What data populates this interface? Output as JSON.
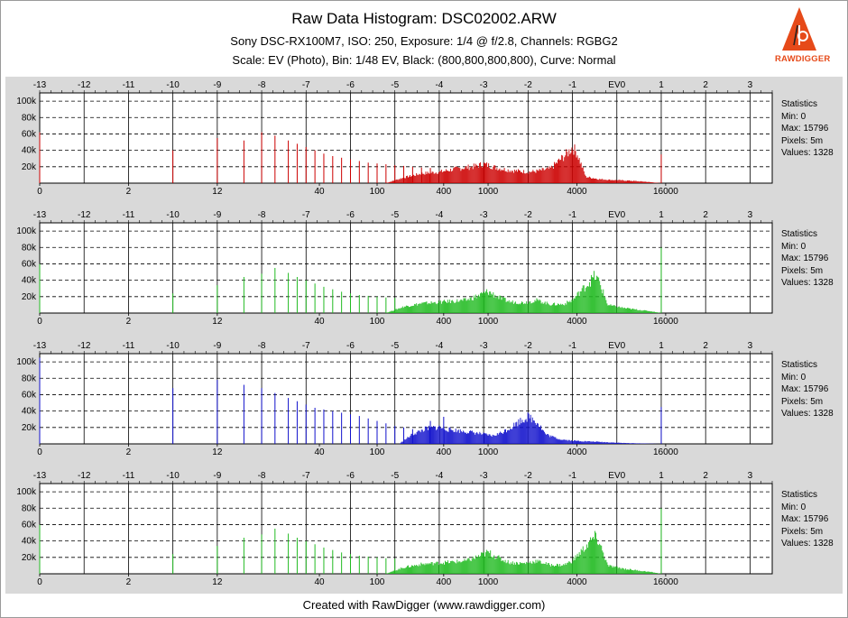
{
  "header": {
    "title": "Raw Data Histogram: DSC02002.ARW",
    "camera_line": "Sony DSC-RX100M7, ISO: 250, Exposure: 1/4 @ f/2.8, Channels: RGBG2",
    "scale_line": "Scale: EV (Photo), Bin: 1/48 EV, Black: (800,800,800,800), Curve: Normal"
  },
  "logo": {
    "text": "RAWDIGGER",
    "accent": "#e64a19"
  },
  "footer": {
    "text": "Created with RawDigger (www.rawdigger.com)"
  },
  "colors": {
    "frame": "#d9d9d9",
    "plot_bg": "#ffffff",
    "grid": "#000000"
  },
  "chart_data": {
    "type": "bar",
    "x_scale": "EV",
    "ev_ticks": [
      "-13",
      "-12",
      "-11",
      "-10",
      "-9",
      "-8",
      "-7",
      "-6",
      "-5",
      "-4",
      "-3",
      "-2",
      "-1",
      "EV0",
      "1",
      "2",
      "3"
    ],
    "raw_ticks": [
      {
        "ev": -13.0,
        "label": "0"
      },
      {
        "ev": -11.0,
        "label": "2"
      },
      {
        "ev": -9.0,
        "label": "12"
      },
      {
        "ev": -6.7,
        "label": "40"
      },
      {
        "ev": -5.4,
        "label": "100"
      },
      {
        "ev": -3.9,
        "label": "400"
      },
      {
        "ev": -2.9,
        "label": "1000"
      },
      {
        "ev": -0.9,
        "label": "4000"
      },
      {
        "ev": 1.1,
        "label": "16000"
      }
    ],
    "x_minor_ticks_per_ev": 4,
    "y_ticks": [
      "20k",
      "40k",
      "60k",
      "80k",
      "100k"
    ],
    "ylim": [
      0,
      110000
    ],
    "stats_title": "Statistics",
    "series": [
      {
        "channel": "R",
        "color": "#cc0000",
        "stats": [
          "Min: 0",
          "Max: 15796",
          "Pixels: 5m",
          "Values: 1328"
        ],
        "spikes": [
          [
            -13,
            62000
          ],
          [
            -10,
            40000
          ],
          [
            -9,
            55000
          ],
          [
            -8.4,
            52000
          ],
          [
            -8,
            62000
          ],
          [
            -7.7,
            58000
          ],
          [
            -7.4,
            52000
          ],
          [
            -7.2,
            48000
          ],
          [
            -7,
            44000
          ],
          [
            -6.8,
            40000
          ],
          [
            -6.6,
            36000
          ],
          [
            -6.4,
            33000
          ],
          [
            -6.2,
            31000
          ],
          [
            -6,
            29000
          ],
          [
            -5.8,
            27000
          ],
          [
            -5.6,
            25000
          ],
          [
            -5.4,
            24000
          ],
          [
            -5.2,
            23000
          ],
          [
            -5,
            22000
          ],
          [
            -4.8,
            21000
          ],
          [
            -4.6,
            20000
          ],
          [
            -4.4,
            19000
          ],
          [
            -4.2,
            18500
          ],
          [
            1.0,
            35000
          ]
        ],
        "envelope": [
          [
            -5.2,
            0
          ],
          [
            -4.8,
            7000
          ],
          [
            -4.4,
            12000
          ],
          [
            -4.0,
            14000
          ],
          [
            -3.6,
            18000
          ],
          [
            -3.2,
            21000
          ],
          [
            -3.0,
            24000
          ],
          [
            -2.7,
            19000
          ],
          [
            -2.4,
            16000
          ],
          [
            -2.0,
            14000
          ],
          [
            -1.8,
            15000
          ],
          [
            -1.5,
            18000
          ],
          [
            -1.3,
            28000
          ],
          [
            -1.1,
            38000
          ],
          [
            -1.0,
            45000
          ],
          [
            -0.9,
            38000
          ],
          [
            -0.7,
            8000
          ],
          [
            -0.4,
            5000
          ],
          [
            -0.1,
            4000
          ],
          [
            0.3,
            3000
          ],
          [
            0.6,
            2000
          ],
          [
            0.9,
            500
          ],
          [
            1.0,
            0
          ]
        ]
      },
      {
        "channel": "G",
        "color": "#22bb22",
        "stats": [
          "Min: 0",
          "Max: 15796",
          "Pixels: 5m",
          "Values: 1328"
        ],
        "spikes": [
          [
            -13,
            60000
          ],
          [
            -10,
            24000
          ],
          [
            -9,
            34000
          ],
          [
            -8.4,
            44000
          ],
          [
            -8,
            48000
          ],
          [
            -7.7,
            55000
          ],
          [
            -7.4,
            49000
          ],
          [
            -7.2,
            44000
          ],
          [
            -7,
            40000
          ],
          [
            -6.8,
            36000
          ],
          [
            -6.6,
            32000
          ],
          [
            -6.4,
            29000
          ],
          [
            -6.2,
            26000
          ],
          [
            -6,
            24000
          ],
          [
            -5.8,
            22000
          ],
          [
            -5.6,
            21000
          ],
          [
            -5.4,
            20000
          ],
          [
            -5.2,
            19000
          ],
          [
            -5,
            18500
          ],
          [
            1.0,
            80000
          ]
        ],
        "envelope": [
          [
            -5.2,
            0
          ],
          [
            -4.8,
            8000
          ],
          [
            -4.4,
            12000
          ],
          [
            -3.9,
            14000
          ],
          [
            -3.4,
            16000
          ],
          [
            -3.1,
            22000
          ],
          [
            -2.9,
            27000
          ],
          [
            -2.6,
            18000
          ],
          [
            -2.4,
            14000
          ],
          [
            -2.1,
            13000
          ],
          [
            -1.8,
            16000
          ],
          [
            -1.5,
            11000
          ],
          [
            -1.2,
            11000
          ],
          [
            -1.0,
            16000
          ],
          [
            -0.8,
            28000
          ],
          [
            -0.6,
            40000
          ],
          [
            -0.5,
            46000
          ],
          [
            -0.4,
            40000
          ],
          [
            -0.2,
            10000
          ],
          [
            0.2,
            6000
          ],
          [
            0.5,
            4000
          ],
          [
            0.8,
            2000
          ],
          [
            1.0,
            0
          ]
        ]
      },
      {
        "channel": "B",
        "color": "#1111cc",
        "stats": [
          "Min: 0",
          "Max: 15796",
          "Pixels: 5m",
          "Values: 1328"
        ],
        "spikes": [
          [
            -13,
            105000
          ],
          [
            -10,
            68000
          ],
          [
            -9,
            78000
          ],
          [
            -8.4,
            72000
          ],
          [
            -8,
            68000
          ],
          [
            -7.7,
            62000
          ],
          [
            -7.4,
            56000
          ],
          [
            -7.2,
            52000
          ],
          [
            -7,
            48000
          ],
          [
            -6.8,
            44000
          ],
          [
            -6.6,
            42000
          ],
          [
            -6.4,
            40000
          ],
          [
            -6.2,
            38000
          ],
          [
            -6,
            36000
          ],
          [
            -5.8,
            34000
          ],
          [
            -5.6,
            31000
          ],
          [
            -5.4,
            28000
          ],
          [
            -5.2,
            25000
          ],
          [
            -5,
            22000
          ],
          [
            -4.8,
            20000
          ],
          [
            -4.6,
            18000
          ],
          [
            -4.2,
            28000
          ],
          [
            -3.9,
            33000
          ],
          [
            1.0,
            45000
          ]
        ],
        "envelope": [
          [
            -4.9,
            0
          ],
          [
            -4.6,
            12000
          ],
          [
            -4.3,
            19000
          ],
          [
            -4.0,
            21000
          ],
          [
            -3.8,
            18000
          ],
          [
            -3.5,
            16000
          ],
          [
            -3.2,
            14000
          ],
          [
            -3.0,
            12000
          ],
          [
            -2.8,
            10000
          ],
          [
            -2.6,
            14000
          ],
          [
            -2.4,
            20000
          ],
          [
            -2.2,
            28000
          ],
          [
            -2.0,
            34000
          ],
          [
            -1.8,
            28000
          ],
          [
            -1.6,
            12000
          ],
          [
            -1.3,
            6000
          ],
          [
            -1.0,
            4000
          ],
          [
            -0.6,
            3000
          ],
          [
            -0.2,
            2000
          ],
          [
            0.2,
            1000
          ],
          [
            0.6,
            500
          ],
          [
            1.0,
            0
          ]
        ]
      },
      {
        "channel": "G2",
        "color": "#22bb22",
        "stats": [
          "Min: 0",
          "Max: 15796",
          "Pixels: 5m",
          "Values: 1328"
        ],
        "spikes": [
          [
            -13,
            60000
          ],
          [
            -10,
            24000
          ],
          [
            -9,
            34000
          ],
          [
            -8.4,
            44000
          ],
          [
            -8,
            48000
          ],
          [
            -7.7,
            55000
          ],
          [
            -7.4,
            49000
          ],
          [
            -7.2,
            44000
          ],
          [
            -7,
            40000
          ],
          [
            -6.8,
            36000
          ],
          [
            -6.6,
            32000
          ],
          [
            -6.4,
            29000
          ],
          [
            -6.2,
            26000
          ],
          [
            -6,
            24000
          ],
          [
            -5.8,
            22000
          ],
          [
            -5.6,
            21000
          ],
          [
            -5.4,
            20000
          ],
          [
            -5.2,
            19000
          ],
          [
            -5,
            18500
          ],
          [
            1.0,
            80000
          ]
        ],
        "envelope": [
          [
            -5.2,
            0
          ],
          [
            -4.8,
            8000
          ],
          [
            -4.4,
            12000
          ],
          [
            -3.9,
            14000
          ],
          [
            -3.4,
            16000
          ],
          [
            -3.1,
            22000
          ],
          [
            -2.9,
            27000
          ],
          [
            -2.6,
            18000
          ],
          [
            -2.4,
            14000
          ],
          [
            -2.1,
            13000
          ],
          [
            -1.8,
            16000
          ],
          [
            -1.5,
            11000
          ],
          [
            -1.2,
            11000
          ],
          [
            -1.0,
            16000
          ],
          [
            -0.8,
            28000
          ],
          [
            -0.6,
            40000
          ],
          [
            -0.5,
            46000
          ],
          [
            -0.4,
            40000
          ],
          [
            -0.2,
            10000
          ],
          [
            0.2,
            6000
          ],
          [
            0.5,
            4000
          ],
          [
            0.8,
            2000
          ],
          [
            1.0,
            0
          ]
        ]
      }
    ]
  }
}
